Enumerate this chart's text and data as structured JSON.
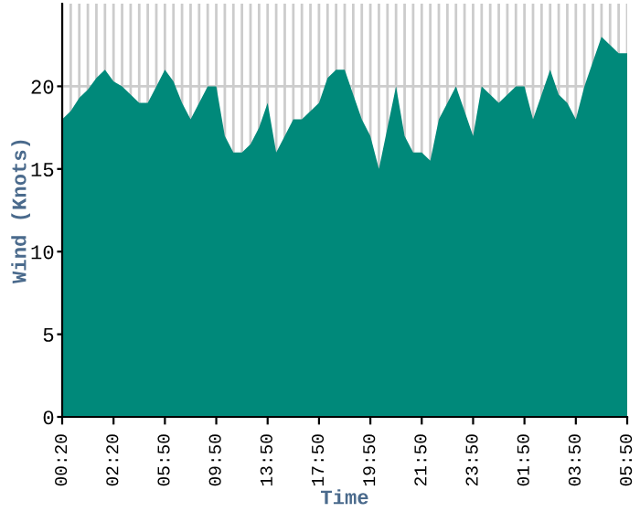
{
  "chart_data": {
    "type": "area",
    "xlabel": "Time",
    "ylabel": "Wind (Knots)",
    "categories": [
      "00:20",
      null,
      null,
      null,
      null,
      null,
      "02:20",
      null,
      null,
      null,
      null,
      null,
      "05:50",
      null,
      null,
      null,
      null,
      null,
      "09:50",
      null,
      null,
      null,
      null,
      null,
      "13:50",
      null,
      null,
      null,
      null,
      null,
      "17:50",
      null,
      null,
      null,
      null,
      null,
      "19:50",
      null,
      null,
      null,
      null,
      null,
      "21:50",
      null,
      null,
      null,
      null,
      null,
      "23:50",
      null,
      null,
      null,
      null,
      null,
      "01:50",
      null,
      null,
      null,
      null,
      null,
      "03:50",
      null,
      null,
      null,
      null,
      null,
      "05:50"
    ],
    "series": [
      {
        "color": "#00897a",
        "values": [
          18,
          18.5,
          19.3,
          19.8,
          20.5,
          21,
          20.3,
          20,
          19.5,
          19,
          19,
          20,
          21,
          20.3,
          19,
          18,
          19,
          20,
          20,
          17,
          16,
          16,
          16.5,
          17.5,
          19,
          16,
          17,
          18,
          18,
          18.5,
          19,
          20.5,
          21,
          21,
          19.5,
          18,
          17,
          15,
          17.5,
          20,
          17,
          16,
          16,
          15.5,
          18,
          19,
          20,
          18.5,
          17,
          20,
          19.5,
          19,
          19.5,
          20,
          20,
          18,
          19.5,
          21,
          19.5,
          19,
          18,
          20,
          21.5,
          23,
          22.5,
          22,
          22
        ]
      }
    ],
    "ylim": [
      0,
      25
    ],
    "yticks": [
      0,
      5,
      10,
      15,
      20
    ],
    "grid": true
  }
}
